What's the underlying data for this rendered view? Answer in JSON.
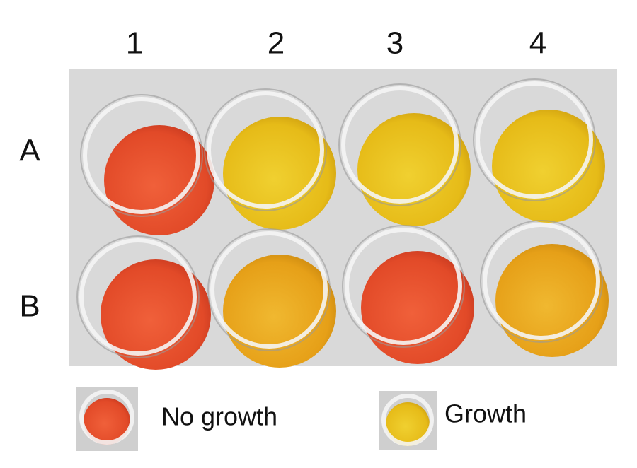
{
  "columns": [
    "1",
    "2",
    "3",
    "4"
  ],
  "rows": [
    "A",
    "B"
  ],
  "legend": [
    {
      "label": "No growth"
    },
    {
      "label": "Growth"
    }
  ]
}
